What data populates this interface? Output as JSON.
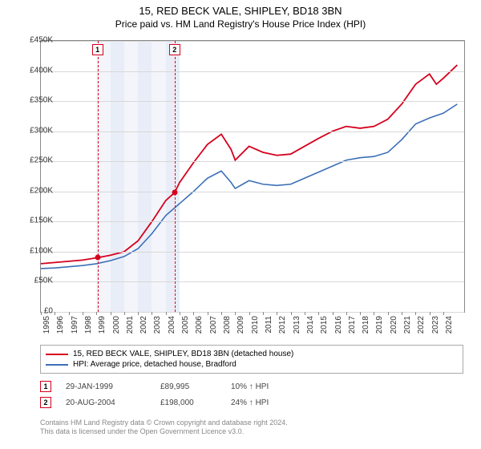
{
  "title": "15, RED BECK VALE, SHIPLEY, BD18 3BN",
  "subtitle": "Price paid vs. HM Land Registry's House Price Index (HPI)",
  "chart": {
    "type": "line",
    "xlim": [
      1995,
      2025.5
    ],
    "ylim": [
      0,
      450000
    ],
    "ytick_step": 50000,
    "xtick_step": 1,
    "background_color": "#ffffff",
    "grid_color": "#d8d8d8",
    "band_colors": [
      "#f3f5fb",
      "#e9edf7"
    ],
    "band_years": [
      1999,
      2000,
      2001,
      2002,
      2003,
      2004
    ],
    "ylabels": [
      "£0",
      "£50K",
      "£100K",
      "£150K",
      "£200K",
      "£250K",
      "£300K",
      "£350K",
      "£400K",
      "£450K"
    ],
    "xlabels": [
      "1995",
      "1996",
      "1997",
      "1998",
      "1999",
      "2000",
      "2001",
      "2002",
      "2003",
      "2004",
      "2005",
      "2006",
      "2007",
      "2008",
      "2009",
      "2010",
      "2011",
      "2012",
      "2013",
      "2014",
      "2015",
      "2016",
      "2017",
      "2018",
      "2019",
      "2020",
      "2021",
      "2022",
      "2023",
      "2024"
    ],
    "series": [
      {
        "name": "price_paid",
        "color": "#d6001c",
        "width": 1.8,
        "points": [
          [
            1995,
            80000
          ],
          [
            1996,
            82000
          ],
          [
            1997,
            84000
          ],
          [
            1998,
            86000
          ],
          [
            1999.08,
            89995
          ],
          [
            2000,
            94000
          ],
          [
            2001,
            100000
          ],
          [
            2002,
            118000
          ],
          [
            2003,
            150000
          ],
          [
            2004,
            185000
          ],
          [
            2004.63,
            198000
          ],
          [
            2005,
            215000
          ],
          [
            2006,
            248000
          ],
          [
            2007,
            278000
          ],
          [
            2008,
            295000
          ],
          [
            2008.7,
            270000
          ],
          [
            2009,
            252000
          ],
          [
            2010,
            275000
          ],
          [
            2011,
            265000
          ],
          [
            2012,
            260000
          ],
          [
            2013,
            262000
          ],
          [
            2014,
            275000
          ],
          [
            2015,
            288000
          ],
          [
            2016,
            300000
          ],
          [
            2017,
            308000
          ],
          [
            2018,
            305000
          ],
          [
            2019,
            308000
          ],
          [
            2020,
            320000
          ],
          [
            2021,
            345000
          ],
          [
            2022,
            378000
          ],
          [
            2023,
            395000
          ],
          [
            2023.5,
            378000
          ],
          [
            2024,
            388000
          ],
          [
            2025,
            410000
          ]
        ]
      },
      {
        "name": "hpi",
        "color": "#3b6fb6",
        "width": 1.6,
        "points": [
          [
            1995,
            72000
          ],
          [
            1996,
            73000
          ],
          [
            1997,
            75000
          ],
          [
            1998,
            77000
          ],
          [
            1999,
            80000
          ],
          [
            2000,
            85000
          ],
          [
            2001,
            92000
          ],
          [
            2002,
            105000
          ],
          [
            2003,
            130000
          ],
          [
            2004,
            160000
          ],
          [
            2005,
            180000
          ],
          [
            2006,
            200000
          ],
          [
            2007,
            222000
          ],
          [
            2008,
            234000
          ],
          [
            2008.7,
            215000
          ],
          [
            2009,
            205000
          ],
          [
            2010,
            218000
          ],
          [
            2011,
            212000
          ],
          [
            2012,
            210000
          ],
          [
            2013,
            212000
          ],
          [
            2014,
            222000
          ],
          [
            2015,
            232000
          ],
          [
            2016,
            242000
          ],
          [
            2017,
            252000
          ],
          [
            2018,
            256000
          ],
          [
            2019,
            258000
          ],
          [
            2020,
            265000
          ],
          [
            2021,
            286000
          ],
          [
            2022,
            312000
          ],
          [
            2023,
            322000
          ],
          [
            2024,
            330000
          ],
          [
            2025,
            345000
          ]
        ]
      }
    ],
    "sale_markers": [
      {
        "n": "1",
        "year": 1999.08,
        "price": 89995,
        "color": "#d6001c"
      },
      {
        "n": "2",
        "year": 2004.63,
        "price": 198000,
        "color": "#d6001c"
      }
    ]
  },
  "legend": {
    "items": [
      {
        "color": "#d6001c",
        "label": "15, RED BECK VALE, SHIPLEY, BD18 3BN (detached house)"
      },
      {
        "color": "#3b6fb6",
        "label": "HPI: Average price, detached house, Bradford"
      }
    ]
  },
  "sales": [
    {
      "n": "1",
      "color": "#d6001c",
      "date": "29-JAN-1999",
      "price": "£89,995",
      "hpi": "10% ↑ HPI"
    },
    {
      "n": "2",
      "color": "#d6001c",
      "date": "20-AUG-2004",
      "price": "£198,000",
      "hpi": "24% ↑ HPI"
    }
  ],
  "footer": {
    "line1": "Contains HM Land Registry data © Crown copyright and database right 2024.",
    "line2": "This data is licensed under the Open Government Licence v3.0."
  }
}
